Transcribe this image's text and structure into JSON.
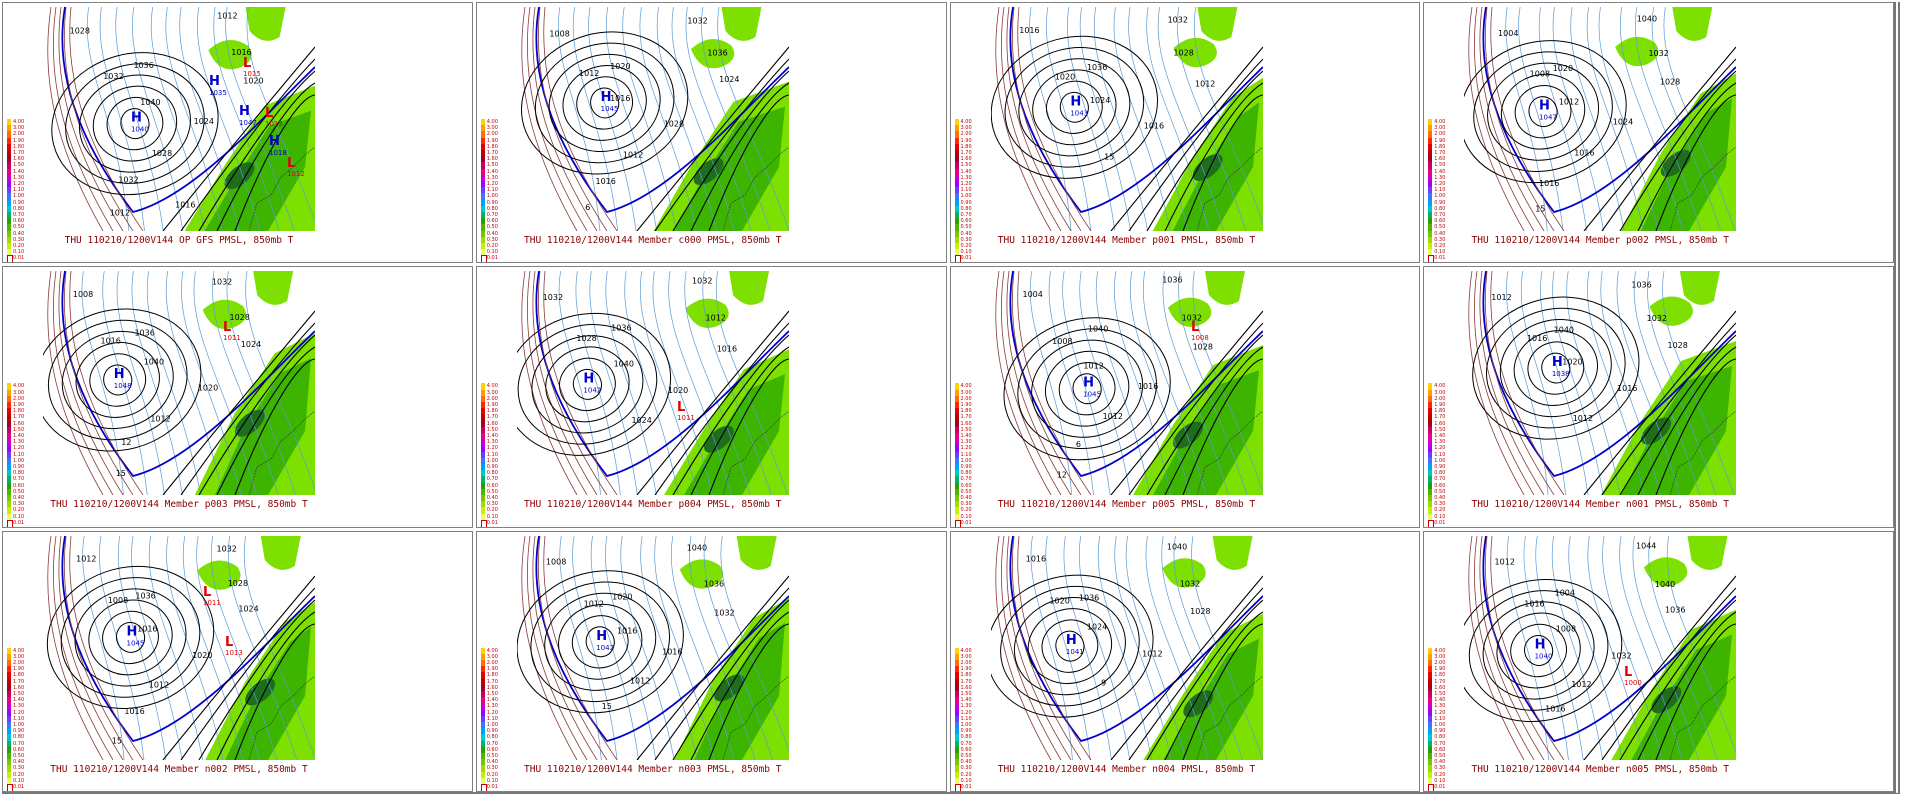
{
  "legend": {
    "labels": [
      "4.00",
      "3.00",
      "2.00",
      "1.90",
      "1.80",
      "1.70",
      "1.60",
      "1.50",
      "1.40",
      "1.30",
      "1.20",
      "1.10",
      "1.00",
      "0.90",
      "0.80",
      "0.70",
      "0.60",
      "0.50",
      "0.40",
      "0.30",
      "0.20",
      "0.10",
      "0.01"
    ],
    "colors": [
      "#ffd200",
      "#ffa000",
      "#ff6e00",
      "#ff2800",
      "#e60000",
      "#be0000",
      "#a00028",
      "#c80064",
      "#e6008c",
      "#c800c8",
      "#a000ff",
      "#6e3cff",
      "#3c78ff",
      "#00a0ff",
      "#00c8c8",
      "#00b464",
      "#28a000",
      "#50b400",
      "#78c800",
      "#a0dc00",
      "#c8f000",
      "#e6ff64",
      "#ffffff"
    ]
  },
  "colors": {
    "caption": "#8b0000",
    "precip_light": "#7ee000",
    "precip_mid": "#3cb400",
    "precip_dark": "#1e6e1e",
    "isobar": "#000000",
    "isotherm_cold": "#5b9bd5",
    "isotherm_freezing": "#0000cc",
    "isotherm_warm": "#8b3a3a"
  },
  "panels": [
    {
      "caption": "THU 110210/1200V144  OP GFS PMSL, 850mb T",
      "labels": [
        "1028",
        "1032",
        "1040",
        "1036",
        "1012",
        "1016",
        "1020",
        "1024",
        "1028",
        "1032",
        "1012",
        "1016"
      ],
      "highs": [
        [
          "H",
          "1040"
        ],
        [
          "H",
          "1035"
        ],
        [
          "H",
          "1047"
        ],
        [
          "H",
          "1018"
        ]
      ],
      "lows": [
        [
          "L",
          "1015"
        ],
        [
          "L",
          "1013"
        ],
        [
          "L",
          "1012"
        ]
      ]
    },
    {
      "caption": "THU 110210/1200V144  Member c000 PMSL, 850mb T",
      "labels": [
        "1008",
        "1012",
        "1016",
        "1020",
        "1032",
        "1036",
        "1024",
        "1028",
        "1012",
        "1016",
        "6"
      ],
      "highs": [
        [
          "H",
          "1045"
        ]
      ],
      "lows": []
    },
    {
      "caption": "THU 110210/1200V144  Member p001 PMSL, 850mb T",
      "labels": [
        "1016",
        "1020",
        "1024",
        "1036",
        "1032",
        "1028",
        "1012",
        "1016",
        "15"
      ],
      "highs": [
        [
          "H",
          "1043"
        ]
      ],
      "lows": []
    },
    {
      "caption": "THU 110210/1200V144  Member p002 PMSL, 850mb T",
      "labels": [
        "1004",
        "1008",
        "1012",
        "1020",
        "1040",
        "1032",
        "1028",
        "1024",
        "1016",
        "1016",
        "15"
      ],
      "highs": [
        [
          "H",
          "1047"
        ]
      ],
      "lows": []
    },
    {
      "caption": "THU 110210/1200V144  Member p003 PMSL, 850mb T",
      "labels": [
        "1008",
        "1016",
        "1040",
        "1036",
        "1032",
        "1028",
        "1024",
        "1020",
        "1012",
        "12",
        "15"
      ],
      "highs": [
        [
          "H",
          "1048"
        ]
      ],
      "lows": [
        [
          "L",
          "1011"
        ]
      ]
    },
    {
      "caption": "THU 110210/1200V144  Member p004 PMSL, 850mb T",
      "labels": [
        "1032",
        "1028",
        "1040",
        "1036",
        "1032",
        "1012",
        "1016",
        "1020",
        "1024"
      ],
      "highs": [
        [
          "H",
          "1042"
        ]
      ],
      "lows": [
        [
          "L",
          "1011"
        ]
      ]
    },
    {
      "caption": "THU 110210/1200V144  Member p005 PMSL, 850mb T",
      "labels": [
        "1004",
        "1008",
        "1012",
        "1040",
        "1036",
        "1032",
        "1028",
        "1016",
        "1012",
        "6",
        "12"
      ],
      "highs": [
        [
          "H",
          "1045"
        ]
      ],
      "lows": [
        [
          "L",
          "1008"
        ]
      ]
    },
    {
      "caption": "THU 110210/1200V144  Member n001 PMSL, 850mb T",
      "labels": [
        "1012",
        "1016",
        "1020",
        "1040",
        "1036",
        "1032",
        "1028",
        "1016",
        "1012"
      ],
      "highs": [
        [
          "H",
          "1038"
        ]
      ],
      "lows": []
    },
    {
      "caption": "THU 110210/1200V144  Member n002 PMSL, 850mb T",
      "labels": [
        "1012",
        "1008",
        "1016",
        "1036",
        "1032",
        "1028",
        "1024",
        "1020",
        "1012",
        "1016",
        "15"
      ],
      "highs": [
        [
          "H",
          "1045"
        ]
      ],
      "lows": [
        [
          "L",
          "1011"
        ],
        [
          "L",
          "1013"
        ]
      ]
    },
    {
      "caption": "THU 110210/1200V144  Member n003 PMSL, 850mb T",
      "labels": [
        "1008",
        "1012",
        "1016",
        "1020",
        "1040",
        "1036",
        "1032",
        "1016",
        "1012",
        "15"
      ],
      "highs": [
        [
          "H",
          "1042"
        ]
      ],
      "lows": []
    },
    {
      "caption": "THU 110210/1200V144  Member n004 PMSL, 850mb T",
      "labels": [
        "1016",
        "1020",
        "1024",
        "1036",
        "1040",
        "1032",
        "1028",
        "1012",
        "9"
      ],
      "highs": [
        [
          "H",
          "1041"
        ]
      ],
      "lows": []
    },
    {
      "caption": "THU 110210/1200V144  Member n005 PMSL, 850mb T",
      "labels": [
        "1012",
        "1016",
        "1008",
        "1004",
        "1044",
        "1040",
        "1036",
        "1032",
        "1012",
        "1016"
      ],
      "highs": [
        [
          "H",
          "1040"
        ]
      ],
      "lows": [
        [
          "L",
          "1000"
        ]
      ]
    }
  ]
}
